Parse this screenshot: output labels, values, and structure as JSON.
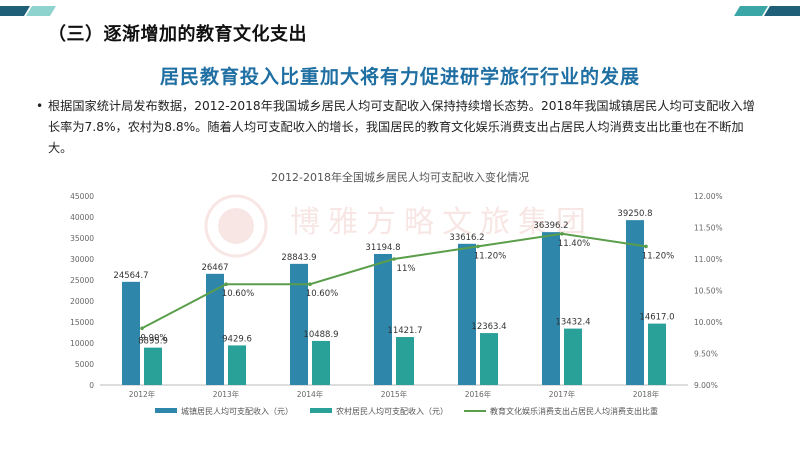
{
  "slide": {
    "section_title": "（三）逐渐增加的教育文化支出",
    "headline": "居民教育投入比重加大将有力促进研学旅行行业的发展",
    "bullet": "•",
    "body": "根据国家统计局发布数据，2012-2018年我国城乡居民人均可支配收入保持持续增长态势。2018年我国城镇居民人均可支配收入增长率为7.8%，农村为8.8%。随着人均可支配收入的增长，我国居民的教育文化娱乐消费支出占居民人均消费支出比重也在不断加大。",
    "colors": {
      "accent": "#1f6fa3",
      "deco_teal": "#3aa6a6",
      "deco_dark": "#1f5f78"
    }
  },
  "chart_data": {
    "type": "bar",
    "title": "2012-2018年全国城乡居民人均可支配收入变化情况",
    "categories": [
      "2012年",
      "2013年",
      "2014年",
      "2015年",
      "2016年",
      "2017年",
      "2018年"
    ],
    "series": [
      {
        "name": "城镇居民人均可支配收入（元）",
        "type": "bar",
        "axis": "left",
        "color": "#2e86ab",
        "values": [
          24564.7,
          26467,
          28843.9,
          31194.8,
          33616.2,
          36396.2,
          39250.8
        ],
        "labels": [
          "24564.7",
          "26467",
          "28843.9",
          "31194.8",
          "33616.2",
          "36396.2",
          "39250.8"
        ]
      },
      {
        "name": "农村居民人均可支配收入（元）",
        "type": "bar",
        "axis": "left",
        "color": "#2aa198",
        "values": [
          8895.9,
          9429.6,
          10488.9,
          11421.7,
          12363.4,
          13432.4,
          14617.0
        ],
        "labels": [
          "8895.9",
          "9429.6",
          "10488.9",
          "11421.7",
          "12363.4",
          "13432.4",
          "14617.0"
        ]
      },
      {
        "name": "教育文化娱乐消费支出占居民人均消费支出比重",
        "type": "line",
        "axis": "right",
        "color": "#5a9e4b",
        "values": [
          9.9,
          10.6,
          10.6,
          11.0,
          11.2,
          11.4,
          11.2
        ],
        "labels": [
          "9.90%",
          "10.60%",
          "10.60%",
          "11%",
          "11.20%",
          "11.40%",
          "11.20%"
        ]
      }
    ],
    "left_ylim": [
      0,
      45000
    ],
    "left_ticks": [
      "0",
      "5000",
      "10000",
      "15000",
      "20000",
      "25000",
      "30000",
      "35000",
      "40000",
      "45000"
    ],
    "right_ylim": [
      9.0,
      12.0
    ],
    "right_ticks": [
      "9.00%",
      "9.50%",
      "10.00%",
      "10.50%",
      "11.00%",
      "11.50%",
      "12.00%"
    ],
    "grid": false,
    "legend_position": "bottom"
  }
}
